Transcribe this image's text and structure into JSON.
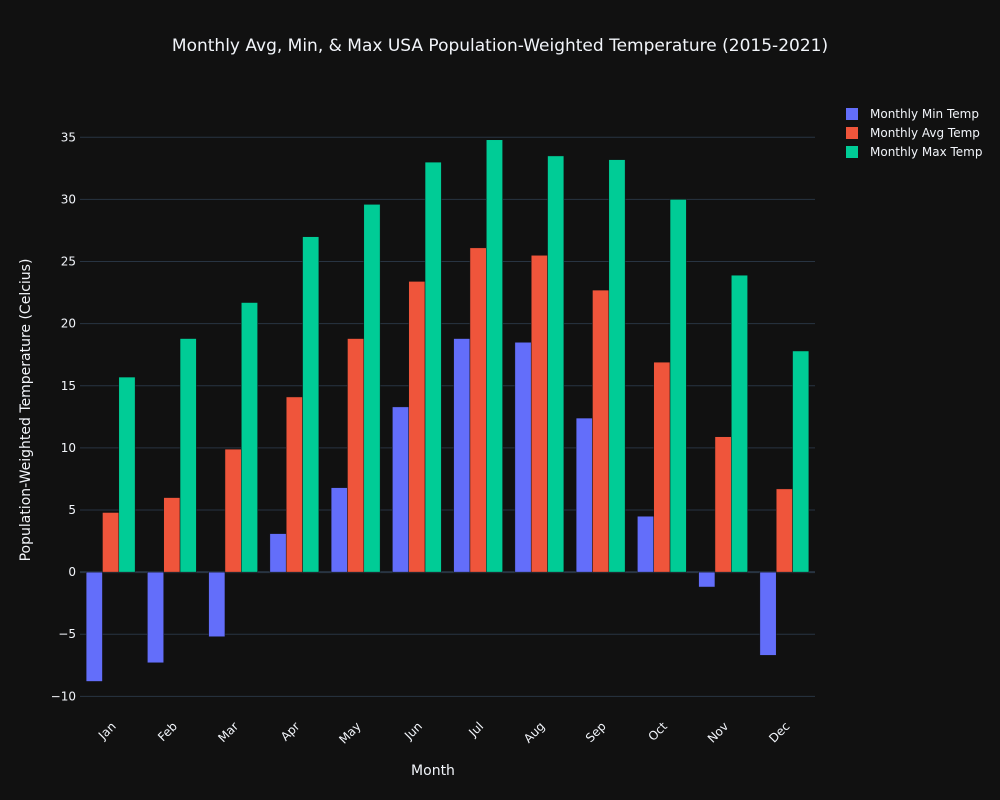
{
  "chart_data": {
    "type": "bar",
    "title": "Monthly Avg, Min, & Max USA Population-Weighted Temperature (2015-2021)",
    "xlabel": "Month",
    "ylabel": "Population-Weighted Temperature (Celcius)",
    "categories": [
      "Jan",
      "Feb",
      "Mar",
      "Apr",
      "May",
      "Jun",
      "Jul",
      "Aug",
      "Sep",
      "Oct",
      "Nov",
      "Dec"
    ],
    "series": [
      {
        "name": "Monthly Min Temp",
        "color": "#636efa",
        "values": [
          -8.8,
          -7.3,
          -5.2,
          3.1,
          6.8,
          13.3,
          18.8,
          18.5,
          12.4,
          4.5,
          -1.2,
          -6.7
        ]
      },
      {
        "name": "Monthly Avg Temp",
        "color": "#ef553b",
        "values": [
          4.8,
          6.0,
          9.9,
          14.1,
          18.8,
          23.4,
          26.1,
          25.5,
          22.7,
          16.9,
          10.9,
          6.7
        ]
      },
      {
        "name": "Monthly Max Temp",
        "color": "#00cc96",
        "values": [
          15.7,
          18.8,
          21.7,
          27.0,
          29.6,
          33.0,
          34.8,
          33.5,
          33.2,
          30.0,
          23.9,
          17.8
        ]
      }
    ],
    "ylim": [
      -11.5,
      38
    ],
    "yticks": [
      -10,
      -5,
      0,
      5,
      10,
      15,
      20,
      25,
      30,
      35
    ],
    "ytick_labels": [
      "−10",
      "−5",
      "0",
      "5",
      "10",
      "15",
      "20",
      "25",
      "30",
      "35"
    ],
    "grid": true,
    "legend": "top-right",
    "background": "#111111",
    "grid_color": "#283442",
    "text_color": "#f2f5fa"
  }
}
